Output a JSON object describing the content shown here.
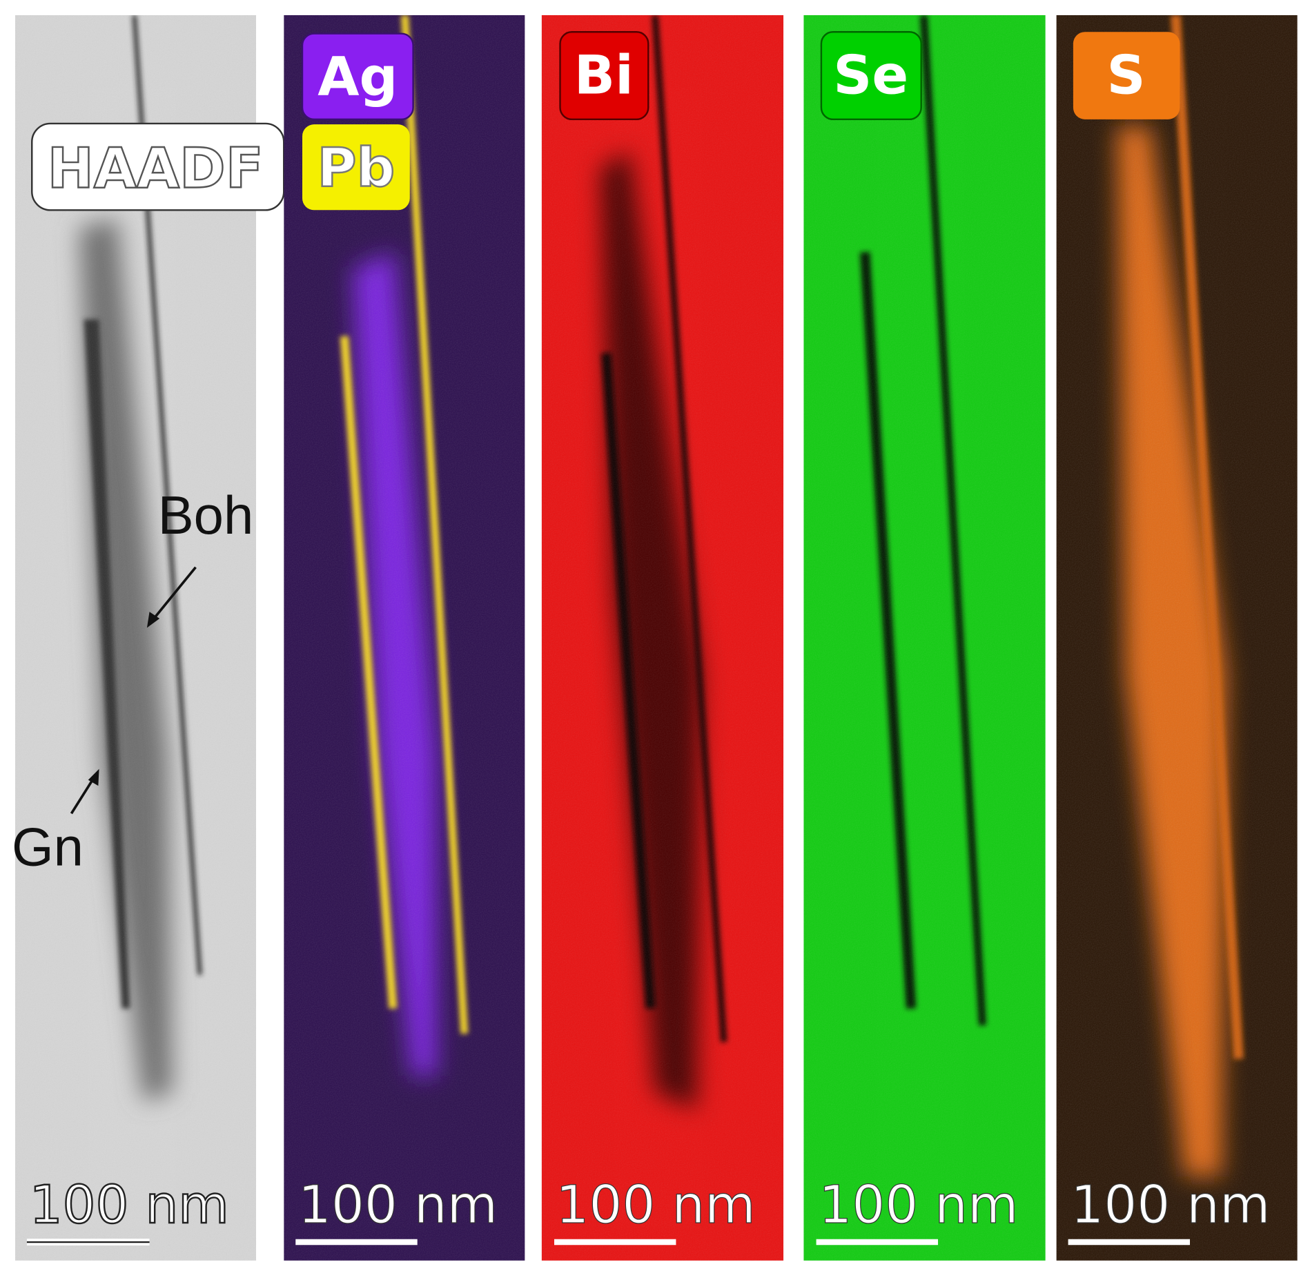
{
  "panels": [
    {
      "labels": [
        "HAADF"
      ],
      "annotations": [
        "Boh",
        "Gn"
      ],
      "scale_bar": "100 nm"
    },
    {
      "labels": [
        "Ag",
        "Pb"
      ],
      "scale_bar": "100 nm"
    },
    {
      "labels": [
        "Bi"
      ],
      "scale_bar": "100 nm"
    },
    {
      "labels": [
        "Se"
      ],
      "scale_bar": "100 nm"
    },
    {
      "labels": [
        "S"
      ],
      "scale_bar": "100 nm"
    }
  ]
}
